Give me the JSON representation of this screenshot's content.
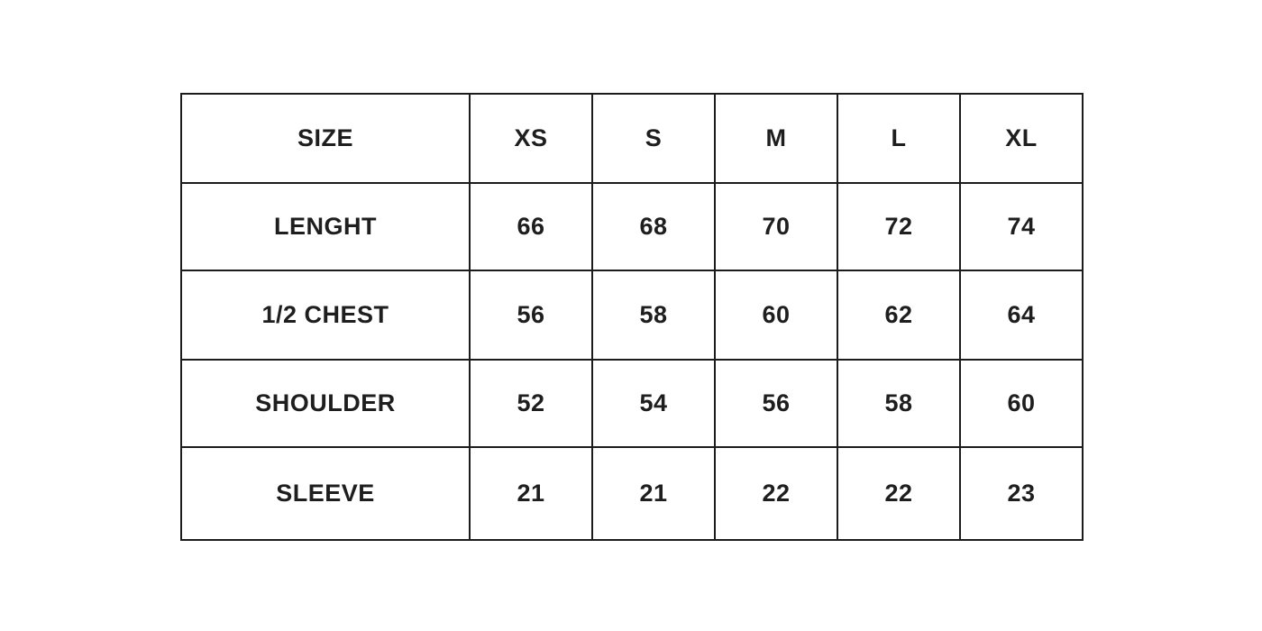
{
  "size_chart": {
    "header": [
      "SIZE",
      "XS",
      "S",
      "M",
      "L",
      "XL"
    ],
    "rows": [
      [
        "LENGHT",
        "66",
        "68",
        "70",
        "72",
        "74"
      ],
      [
        "1/2 CHEST",
        "56",
        "58",
        "60",
        "62",
        "64"
      ],
      [
        "SHOULDER",
        "52",
        "54",
        "56",
        "58",
        "60"
      ],
      [
        "SLEEVE",
        "21",
        "21",
        "22",
        "22",
        "23"
      ]
    ]
  }
}
